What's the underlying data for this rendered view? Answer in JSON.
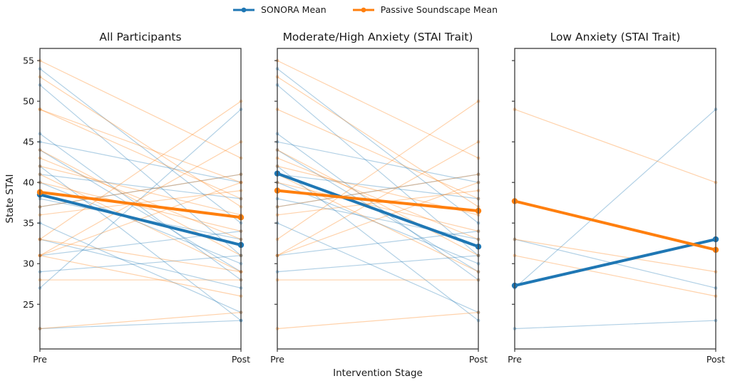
{
  "figure": {
    "xlabel": "Intervention Stage",
    "ylabel": "State STAI",
    "x_tick_labels": [
      "Pre",
      "Post"
    ],
    "y_ticks": [
      25,
      30,
      35,
      40,
      45,
      50,
      55
    ],
    "ylim": [
      19.5,
      56.5
    ]
  },
  "legend": {
    "items": [
      {
        "label": "SONORA Mean",
        "color": "#1f77b4"
      },
      {
        "label": "Passive Soundscape Mean",
        "color": "#ff7f0e"
      }
    ]
  },
  "chart_data": {
    "type": "line",
    "x": [
      "Pre",
      "Post"
    ],
    "xlabel": "Intervention Stage",
    "ylabel": "State STAI",
    "ylim": [
      19.5,
      56.5
    ],
    "y_ticks": [
      25,
      30,
      35,
      40,
      45,
      50,
      55
    ],
    "legend_position": "top-center",
    "grid": false,
    "style": {
      "sonora_color": "#1f77b4",
      "passive_color": "#ff7f0e",
      "individual_alpha": 0.35,
      "mean_linewidth": 4,
      "individual_linewidth": 1.2,
      "spine_color": "#3a3a3a"
    },
    "panels": [
      {
        "title": "All Participants",
        "means": {
          "sonora": {
            "name": "SONORA Mean",
            "values": [
              38.5,
              32.3
            ]
          },
          "passive": {
            "name": "Passive Soundscape Mean",
            "values": [
              38.8,
              35.7
            ]
          }
        },
        "individuals": {
          "sonora": [
            [
              54,
              35
            ],
            [
              52,
              31
            ],
            [
              46,
              28
            ],
            [
              45,
              40
            ],
            [
              44,
              29
            ],
            [
              42,
              23
            ],
            [
              41,
              38
            ],
            [
              40,
              30
            ],
            [
              38,
              33
            ],
            [
              37,
              41
            ],
            [
              35,
              24
            ],
            [
              31,
              34
            ],
            [
              29,
              31
            ],
            [
              22,
              23
            ],
            [
              27,
              49
            ],
            [
              33,
              27
            ]
          ],
          "passive": [
            [
              55,
              43
            ],
            [
              53,
              37
            ],
            [
              49,
              38
            ],
            [
              44,
              31
            ],
            [
              43,
              33
            ],
            [
              42,
              36
            ],
            [
              41,
              29
            ],
            [
              40,
              34
            ],
            [
              37,
              41
            ],
            [
              36,
              39
            ],
            [
              33,
              50
            ],
            [
              31,
              45
            ],
            [
              22,
              24
            ],
            [
              28,
              28
            ],
            [
              31,
              40
            ],
            [
              49,
              40
            ],
            [
              33,
              29
            ],
            [
              31,
              26
            ]
          ]
        }
      },
      {
        "title": "Moderate/High Anxiety (STAI Trait)",
        "means": {
          "sonora": {
            "name": "SONORA Mean",
            "values": [
              41.1,
              32.1
            ]
          },
          "passive": {
            "name": "Passive Soundscape Mean",
            "values": [
              39.0,
              36.5
            ]
          }
        },
        "individuals": {
          "sonora": [
            [
              54,
              35
            ],
            [
              52,
              31
            ],
            [
              46,
              28
            ],
            [
              45,
              40
            ],
            [
              44,
              29
            ],
            [
              42,
              23
            ],
            [
              41,
              38
            ],
            [
              40,
              30
            ],
            [
              38,
              33
            ],
            [
              37,
              41
            ],
            [
              35,
              24
            ],
            [
              31,
              34
            ],
            [
              29,
              31
            ]
          ],
          "passive": [
            [
              55,
              43
            ],
            [
              53,
              37
            ],
            [
              49,
              38
            ],
            [
              44,
              31
            ],
            [
              43,
              33
            ],
            [
              42,
              36
            ],
            [
              41,
              29
            ],
            [
              40,
              34
            ],
            [
              37,
              41
            ],
            [
              36,
              39
            ],
            [
              33,
              50
            ],
            [
              31,
              45
            ],
            [
              22,
              24
            ],
            [
              28,
              28
            ],
            [
              31,
              40
            ]
          ]
        }
      },
      {
        "title": "Low Anxiety (STAI Trait)",
        "means": {
          "sonora": {
            "name": "SONORA Mean",
            "values": [
              27.3,
              33.0
            ]
          },
          "passive": {
            "name": "Passive Soundscape Mean",
            "values": [
              37.7,
              31.7
            ]
          }
        },
        "individuals": {
          "sonora": [
            [
              22,
              23
            ],
            [
              27,
              49
            ],
            [
              33,
              27
            ]
          ],
          "passive": [
            [
              49,
              40
            ],
            [
              33,
              29
            ],
            [
              31,
              26
            ]
          ]
        }
      }
    ]
  }
}
